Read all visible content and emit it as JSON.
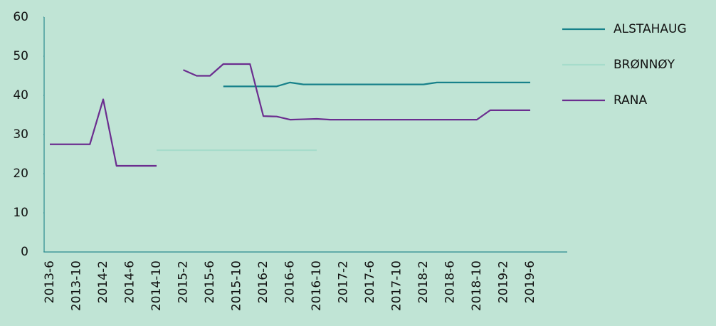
{
  "chart_data": {
    "type": "line",
    "categories": [
      "2013-6",
      null,
      "2013-10",
      null,
      "2014-2",
      null,
      "2014-6",
      null,
      "2014-10",
      null,
      "2015-2",
      null,
      "2015-6",
      null,
      "2015-10",
      null,
      "2016-2",
      null,
      "2016-6",
      null,
      "2016-10",
      null,
      "2017-2",
      null,
      "2017-6",
      null,
      "2017-10",
      null,
      "2018-2",
      null,
      "2018-6",
      null,
      "2018-10",
      null,
      "2019-2",
      null,
      "2019-6"
    ],
    "series": [
      {
        "name": "ALSTAHAUG",
        "color": "#17818a",
        "values": [
          null,
          null,
          null,
          null,
          null,
          null,
          null,
          null,
          null,
          null,
          null,
          null,
          null,
          42.3,
          42.3,
          42.3,
          42.3,
          42.3,
          43.3,
          42.8,
          42.8,
          42.8,
          42.8,
          42.8,
          42.8,
          42.8,
          42.8,
          42.8,
          42.8,
          43.3,
          43.3,
          43.3,
          43.3,
          43.3,
          43.3,
          43.3,
          43.3
        ]
      },
      {
        "name": "BRØNNØY",
        "color": "#a6dccb",
        "values": [
          null,
          null,
          null,
          null,
          null,
          null,
          null,
          null,
          26,
          26,
          26,
          26,
          26,
          26,
          26,
          26,
          26,
          26,
          26,
          26,
          26,
          null,
          null,
          null,
          null,
          null,
          null,
          null,
          null,
          null,
          null,
          null,
          null,
          null,
          null,
          null,
          null
        ]
      },
      {
        "name": "RANA",
        "color": "#6b2d8f",
        "values": [
          27.5,
          27.5,
          27.5,
          27.5,
          39,
          22,
          22,
          22,
          22,
          null,
          46.5,
          45,
          45,
          48,
          48,
          48,
          34.7,
          34.6,
          33.8,
          33.9,
          34,
          33.8,
          33.8,
          33.8,
          33.8,
          33.8,
          33.8,
          33.8,
          33.8,
          33.8,
          33.8,
          33.8,
          33.8,
          36.2,
          36.2,
          36.2,
          36.2
        ]
      }
    ],
    "ylim": [
      0,
      60
    ],
    "yticks": [
      0,
      10,
      20,
      30,
      40,
      50,
      60
    ],
    "grid": false,
    "legend": "right"
  }
}
